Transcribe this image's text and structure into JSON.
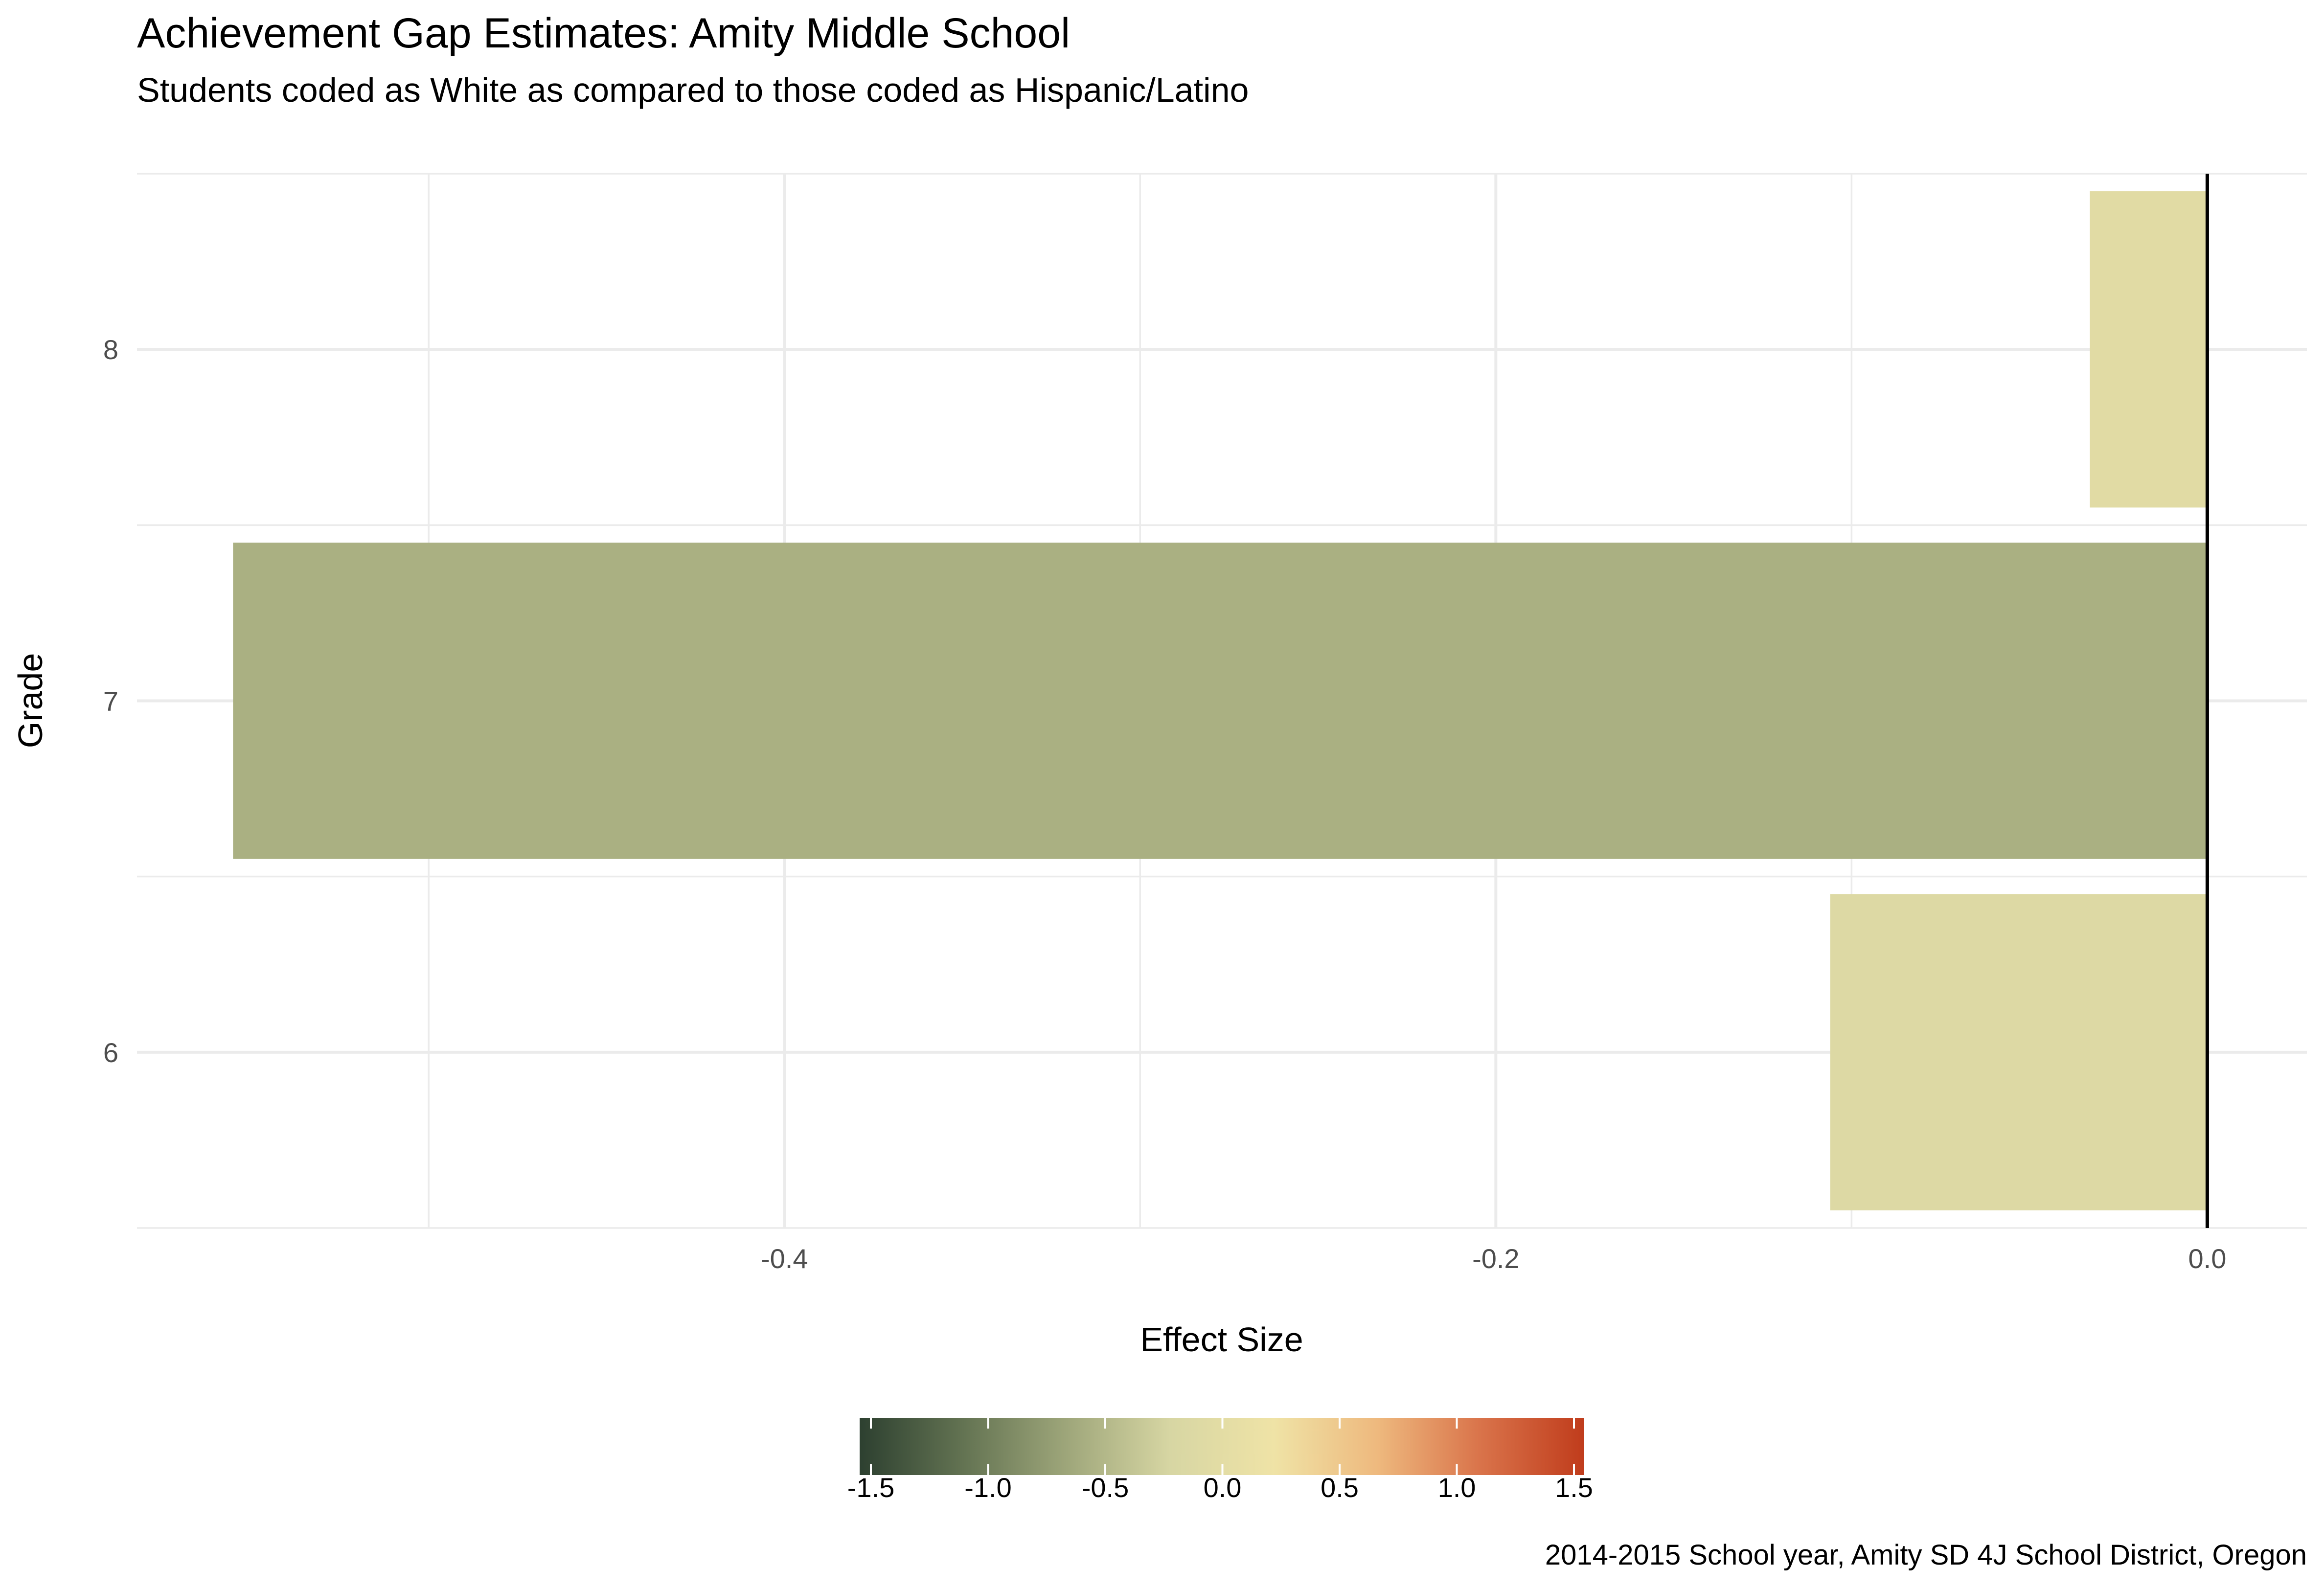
{
  "chart_data": {
    "type": "bar",
    "orientation": "horizontal",
    "title": "Achievement Gap Estimates: Amity Middle School",
    "subtitle": "Students coded as White as compared to those coded as Hispanic/Latino",
    "xlabel": "Effect Size",
    "ylabel": "Grade",
    "caption": "2014-2015 School year, Amity SD 4J School District, Oregon",
    "categories": [
      "6",
      "7",
      "8"
    ],
    "values": [
      -0.106,
      -0.555,
      -0.033
    ],
    "xlim": [
      -0.582,
      0.028
    ],
    "x_ticks": [
      -0.4,
      -0.2,
      0.0
    ],
    "x_tick_labels": [
      "-0.4",
      "-0.2",
      "0.0"
    ],
    "reference_line_x": 0.0,
    "grid": true,
    "legend": {
      "position": "bottom",
      "type": "colorbar",
      "range": [
        -1.5,
        1.5
      ],
      "ticks": [
        -1.5,
        -1.0,
        -0.5,
        0.0,
        0.5,
        1.0,
        1.5
      ],
      "tick_labels": [
        "-1.5",
        "-1.0",
        "-0.5",
        "0.0",
        "0.5",
        "1.0",
        "1.5"
      ]
    },
    "palette": {
      "stops": [
        "#2d4030",
        "#637352",
        "#9ea67a",
        "#d7d6a3",
        "#efe3a6",
        "#eeb97e",
        "#d9734a",
        "#c03c1c"
      ]
    }
  }
}
